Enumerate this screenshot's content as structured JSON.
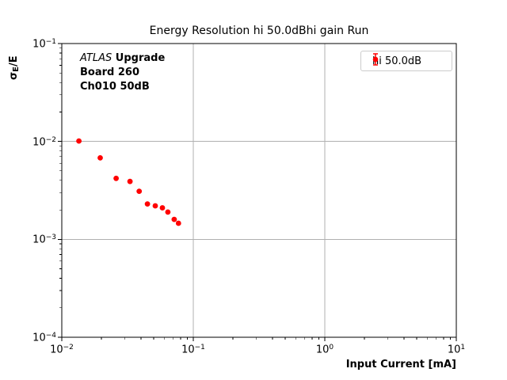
{
  "chart_data": {
    "type": "scatter",
    "title": "Energy Resolution hi 50.0dBhi gain Run",
    "xlabel": "Input Current [mA]",
    "ylabel": "σ_E/E",
    "ylabel_parts": {
      "symbol": "σ",
      "subscript": "E",
      "rest": "/E"
    },
    "xscale": "log",
    "yscale": "log",
    "xlim": [
      0.01,
      10
    ],
    "ylim": [
      0.0001,
      0.1
    ],
    "x_tick_exponents": [
      -2,
      -1,
      0,
      1
    ],
    "y_tick_exponents": [
      -1,
      -2,
      -3,
      -4
    ],
    "grid": "major",
    "grid_color": "#b0b0b0",
    "axis_color": "#000000",
    "legend_position": "upper right",
    "series": [
      {
        "name": "hi 50.0dB",
        "color": "#ff0000",
        "marker": "circle-errorbar",
        "x": [
          0.0135,
          0.0196,
          0.0259,
          0.033,
          0.0388,
          0.0448,
          0.0514,
          0.0582,
          0.0641,
          0.0716,
          0.0771
        ],
        "y": [
          0.0101,
          0.0068,
          0.0042,
          0.0039,
          0.0031,
          0.0023,
          0.0022,
          0.0021,
          0.0019,
          0.0016,
          0.00146
        ]
      }
    ],
    "annotation": {
      "line1_italic": "ATLAS",
      "line1_bold": " Upgrade",
      "line2": "Board 260",
      "line3": "Ch010 50dB"
    }
  }
}
